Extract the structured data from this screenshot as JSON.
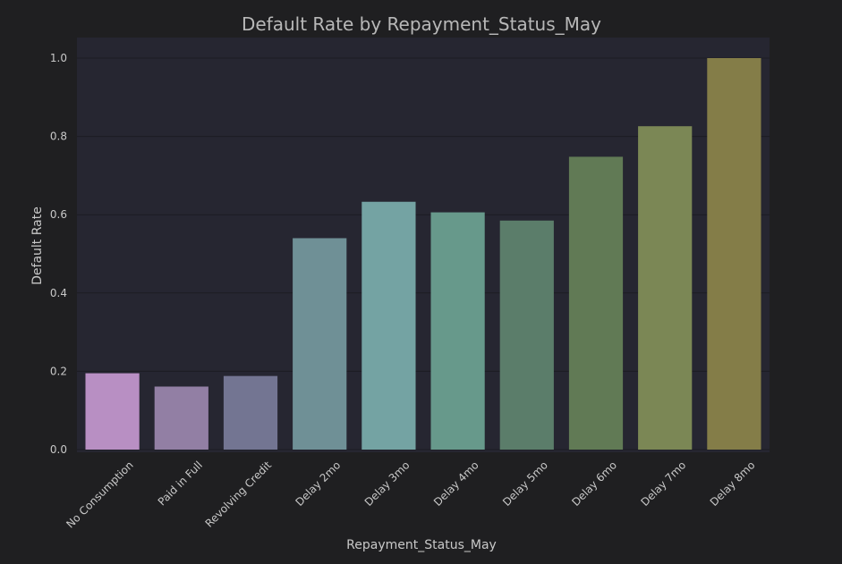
{
  "chart_data": {
    "type": "bar",
    "title": "Default Rate by Repayment_Status_May",
    "xlabel": "Repayment_Status_May",
    "ylabel": "Default Rate",
    "ylim": [
      0,
      1.0
    ],
    "yticks": [
      "0.0",
      "0.2",
      "0.4",
      "0.6",
      "0.8",
      "1.0"
    ],
    "grid": true,
    "categories": [
      "No Consumption",
      "Paid in Full",
      "Revolving Credit",
      "Delay 2mo",
      "Delay 3mo",
      "Delay 4mo",
      "Delay 5mo",
      "Delay 6mo",
      "Delay 7mo",
      "Delay 8mo"
    ],
    "values": [
      0.195,
      0.161,
      0.188,
      0.54,
      0.633,
      0.606,
      0.585,
      0.748,
      0.826,
      1.0
    ],
    "colors": [
      "#b88fc3",
      "#927fa4",
      "#737592",
      "#6f9096",
      "#74a3a3",
      "#67998b",
      "#5b7d6a",
      "#617a55",
      "#7b8755",
      "#847d48"
    ],
    "background": "#1f1f21",
    "plot_background": "#262631",
    "gridline_color": "#1c1c22",
    "text_color": "#c8c8c8",
    "title_color": "#b8b8b8"
  }
}
